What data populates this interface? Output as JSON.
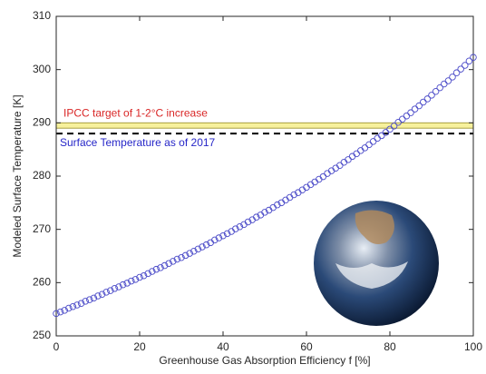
{
  "chart_data": {
    "type": "scatter",
    "x_label": "Greenhouse Gas Absorption Efficiency f [%]",
    "y_label": "Modeled Surface Temperature [K]",
    "xlim": [
      0,
      100
    ],
    "xticks": [
      0,
      20,
      40,
      60,
      80,
      100
    ],
    "ylim": [
      250,
      310
    ],
    "yticks": [
      250,
      260,
      270,
      280,
      290,
      300,
      310
    ],
    "band": {
      "range": [
        289,
        290
      ],
      "label": "IPCC target of 1-2°C increase",
      "color": "#f7f19c",
      "label_color": "#d92626"
    },
    "reference_line": {
      "value": 288,
      "label": "Surface Temperature as of 2017",
      "color": "#000000",
      "label_color": "#2626c8"
    },
    "series": [
      {
        "color": "#4b4bc8",
        "x": [
          0,
          1,
          2,
          3,
          4,
          5,
          6,
          7,
          8,
          9,
          10,
          11,
          12,
          13,
          14,
          15,
          16,
          17,
          18,
          19,
          20,
          21,
          22,
          23,
          24,
          25,
          26,
          27,
          28,
          29,
          30,
          31,
          32,
          33,
          34,
          35,
          36,
          37,
          38,
          39,
          40,
          41,
          42,
          43,
          44,
          45,
          46,
          47,
          48,
          49,
          50,
          51,
          52,
          53,
          54,
          55,
          56,
          57,
          58,
          59,
          60,
          61,
          62,
          63,
          64,
          65,
          66,
          67,
          68,
          69,
          70,
          71,
          72,
          73,
          74,
          75,
          76,
          77,
          78,
          79,
          80,
          81,
          82,
          83,
          84,
          85,
          86,
          87,
          88,
          89,
          90,
          91,
          92,
          93,
          94,
          95,
          96,
          97,
          98,
          99,
          100
        ],
        "values": [
          254.2,
          254.5,
          254.8,
          255.2,
          255.5,
          255.8,
          256.1,
          256.5,
          256.8,
          257.1,
          257.5,
          257.8,
          258.2,
          258.5,
          258.9,
          259.2,
          259.6,
          259.9,
          260.3,
          260.6,
          261.0,
          261.3,
          261.7,
          262.1,
          262.5,
          262.8,
          263.2,
          263.6,
          264.0,
          264.4,
          264.7,
          265.1,
          265.5,
          265.9,
          266.3,
          266.7,
          267.1,
          267.5,
          268.0,
          268.4,
          268.8,
          269.2,
          269.6,
          270.1,
          270.5,
          270.9,
          271.4,
          271.8,
          272.3,
          272.7,
          273.2,
          273.6,
          274.1,
          274.6,
          275.0,
          275.5,
          276.0,
          276.5,
          276.9,
          277.4,
          277.9,
          278.4,
          278.9,
          279.4,
          279.9,
          280.5,
          281.0,
          281.5,
          282.0,
          282.6,
          283.1,
          283.7,
          284.2,
          284.8,
          285.3,
          285.9,
          286.5,
          287.1,
          287.6,
          288.2,
          288.8,
          289.4,
          290.1,
          290.7,
          291.3,
          291.9,
          292.6,
          293.2,
          293.9,
          294.5,
          295.2,
          295.9,
          296.6,
          297.3,
          297.9,
          298.6,
          299.4,
          300.1,
          300.8,
          301.6,
          302.3
        ]
      }
    ]
  }
}
